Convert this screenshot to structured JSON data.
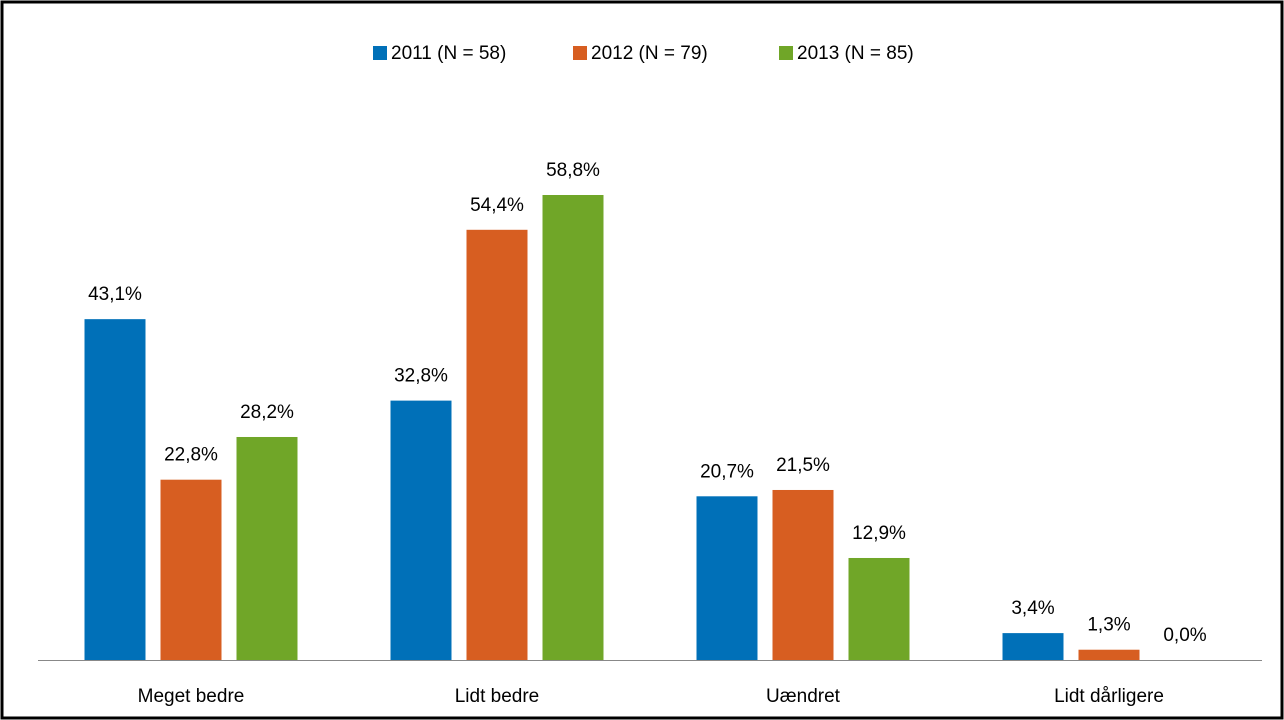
{
  "chart_data": {
    "type": "bar",
    "categories": [
      "Meget bedre",
      "Lidt bedre",
      "Uændret",
      "Lidt dårligere"
    ],
    "series": [
      {
        "name": "2011 (N = 58)",
        "color": "#0070b8",
        "values": [
          43.1,
          32.8,
          20.7,
          3.4
        ],
        "value_labels": [
          "43,1%",
          "32,8%",
          "20,7%",
          "3,4%"
        ]
      },
      {
        "name": "2012 (N = 79)",
        "color": "#d75e21",
        "values": [
          22.8,
          54.4,
          21.5,
          1.3
        ],
        "value_labels": [
          "22,8%",
          "54,4%",
          "21,5%",
          "1,3%"
        ]
      },
      {
        "name": "2013 (N = 85)",
        "color": "#70a628",
        "values": [
          28.2,
          58.8,
          12.9,
          0.0
        ],
        "value_labels": [
          "28,2%",
          "58,8%",
          "12,9%",
          "0,0%"
        ]
      }
    ]
  }
}
